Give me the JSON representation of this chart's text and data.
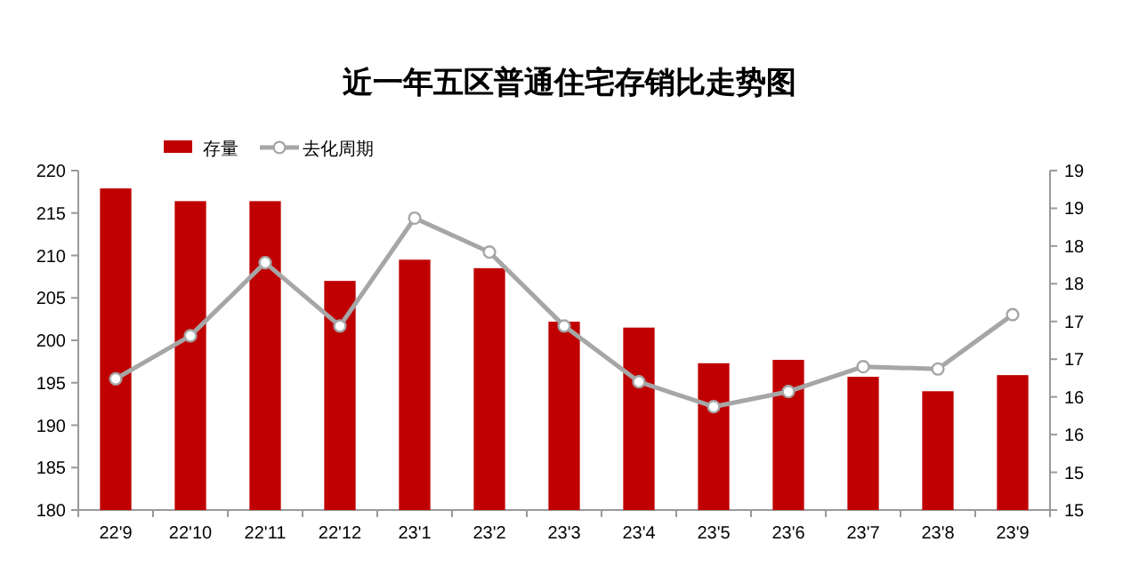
{
  "chart_data": {
    "type": "bar",
    "title": "近一年五区普通住宅存销比走势图",
    "categories": [
      "22'9",
      "22'10",
      "22'11",
      "22'12",
      "23'1",
      "23'2",
      "23'3",
      "23'4",
      "23'5",
      "23'6",
      "23'7",
      "23'8",
      "23'9"
    ],
    "series": [
      {
        "name": "存量",
        "color": "#c00000",
        "values": [
          217.9,
          216.4,
          216.4,
          207.0,
          209.5,
          208.5,
          202.2,
          201.5,
          197.3,
          197.7,
          195.7,
          194.0,
          195.9
        ]
      },
      {
        "name": "去化周期",
        "type": "line",
        "axis": "y2",
        "color": "#a6a6a6",
        "marker": "circle",
        "values": [
          16.34,
          16.91,
          17.88,
          17.04,
          18.47,
          18.02,
          17.04,
          16.3,
          15.97,
          16.17,
          16.5,
          16.47,
          17.19
        ]
      }
    ],
    "ylim": [
      180,
      220
    ],
    "yticks": [
      180,
      185,
      190,
      195,
      200,
      205,
      210,
      215,
      220
    ],
    "y2lim": [
      14.6,
      19.1
    ],
    "y2ticks": [
      {
        "value": 14.6,
        "label": "15"
      },
      {
        "value": 15.1,
        "label": "15"
      },
      {
        "value": 15.6,
        "label": "16"
      },
      {
        "value": 16.1,
        "label": "16"
      },
      {
        "value": 16.6,
        "label": "17"
      },
      {
        "value": 17.1,
        "label": "17"
      },
      {
        "value": 17.6,
        "label": "18"
      },
      {
        "value": 18.1,
        "label": "18"
      },
      {
        "value": 18.6,
        "label": "19"
      },
      {
        "value": 19.1,
        "label": "19"
      }
    ],
    "legend": "top left",
    "grid": false
  }
}
